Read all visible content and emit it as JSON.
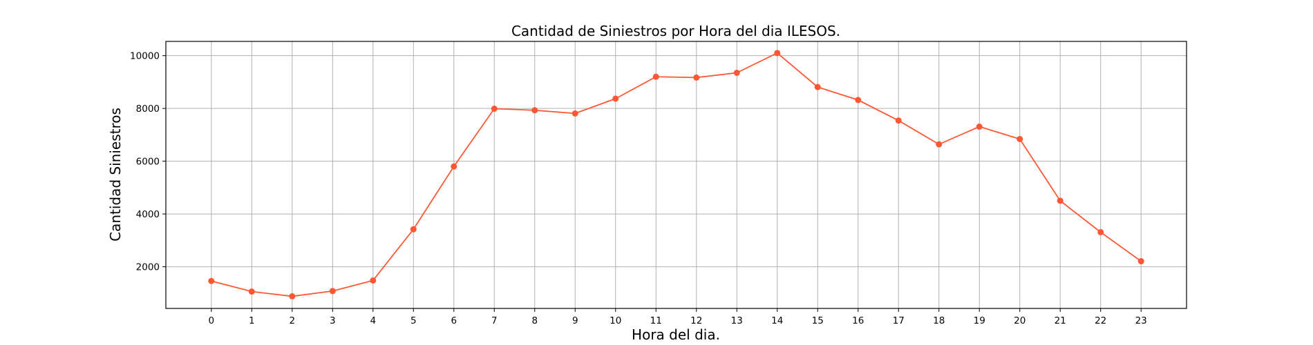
{
  "chart_data": {
    "type": "line",
    "title": "Cantidad de Siniestros por Hora del dia ILESOS.",
    "xlabel": "Hora del dia.",
    "ylabel": "Cantidad Siniestros",
    "x": [
      0,
      1,
      2,
      3,
      4,
      5,
      6,
      7,
      8,
      9,
      10,
      11,
      12,
      13,
      14,
      15,
      16,
      17,
      18,
      19,
      20,
      21,
      22,
      23
    ],
    "x_tick_labels": [
      "0",
      "1",
      "2",
      "3",
      "4",
      "5",
      "6",
      "7",
      "8",
      "9",
      "10",
      "11",
      "12",
      "13",
      "14",
      "15",
      "16",
      "17",
      "18",
      "19",
      "20",
      "21",
      "22",
      "23"
    ],
    "series": [
      {
        "name": "ILESOS",
        "color": "#ff5733",
        "values": [
          1460,
          1060,
          880,
          1080,
          1480,
          3420,
          5800,
          7990,
          7930,
          7810,
          8370,
          9200,
          9170,
          9350,
          10100,
          8810,
          8320,
          7540,
          6640,
          7310,
          6840,
          4500,
          3310,
          2210
        ]
      }
    ],
    "xlim": [
      -1.125,
      24.125
    ],
    "ylim": [
      420,
      10540
    ],
    "y_ticks": [
      2000,
      4000,
      6000,
      8000,
      10000
    ],
    "y_tick_labels": [
      "2000",
      "4000",
      "6000",
      "8000",
      "10000"
    ],
    "grid": true,
    "legend": "none"
  }
}
